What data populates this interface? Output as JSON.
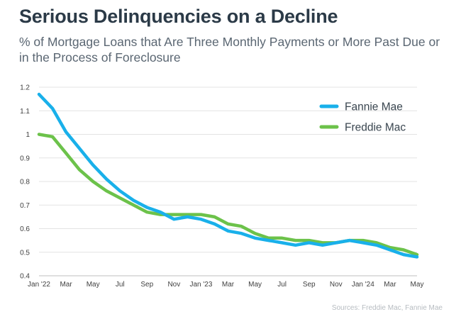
{
  "header": {
    "title": "Serious Delinquencies on a Decline",
    "subtitle": "% of Mortgage Loans that Are Three Monthly Payments or More Past Due or in the Process of Foreclosure"
  },
  "footer": {
    "source": "Sources: Freddie Mac, Fannie Mae"
  },
  "colors": {
    "fannie": "#19b0ea",
    "freddie": "#6cc24a",
    "grid": "#e3e3e3"
  },
  "chart_data": {
    "type": "line",
    "title": "Serious Delinquencies on a Decline",
    "subtitle": "% of Mortgage Loans that Are Three Monthly Payments or More Past Due or in the Process of Foreclosure",
    "xlabel": "",
    "ylabel": "",
    "ylim": [
      0.4,
      1.2
    ],
    "yticks": [
      0.4,
      0.5,
      0.6,
      0.7,
      0.8,
      0.9,
      1,
      1.1,
      1.2
    ],
    "ytick_labels": [
      "0.4",
      "0.5",
      "0.6",
      "0.7",
      "0.8",
      "0.9",
      "1",
      "1.1",
      "1.2"
    ],
    "grid": true,
    "legend_position": "top-right",
    "x": [
      "Jan '22",
      "Feb '22",
      "Mar '22",
      "Apr '22",
      "May '22",
      "Jun '22",
      "Jul '22",
      "Aug '22",
      "Sep '22",
      "Oct '22",
      "Nov '22",
      "Dec '22",
      "Jan '23",
      "Feb '23",
      "Mar '23",
      "Apr '23",
      "May '23",
      "Jun '23",
      "Jul '23",
      "Aug '23",
      "Sep '23",
      "Oct '23",
      "Nov '23",
      "Dec '23",
      "Jan '24",
      "Feb '24",
      "Mar '24",
      "Apr '24",
      "May '24"
    ],
    "x_tick_labels": [
      {
        "index": 0,
        "label": "Jan '22"
      },
      {
        "index": 2,
        "label": "Mar"
      },
      {
        "index": 4,
        "label": "May"
      },
      {
        "index": 6,
        "label": "Jul"
      },
      {
        "index": 8,
        "label": "Sep"
      },
      {
        "index": 10,
        "label": "Nov"
      },
      {
        "index": 12,
        "label": "Jan '23"
      },
      {
        "index": 14,
        "label": "Mar"
      },
      {
        "index": 16,
        "label": "May"
      },
      {
        "index": 18,
        "label": "Jul"
      },
      {
        "index": 20,
        "label": "Sep"
      },
      {
        "index": 22,
        "label": "Nov"
      },
      {
        "index": 24,
        "label": "Jan '24"
      },
      {
        "index": 26,
        "label": "Mar"
      },
      {
        "index": 28,
        "label": "May"
      }
    ],
    "series": [
      {
        "name": "Fannie Mae",
        "color": "#19b0ea",
        "values": [
          1.17,
          1.11,
          1.01,
          0.94,
          0.87,
          0.81,
          0.76,
          0.72,
          0.69,
          0.67,
          0.64,
          0.65,
          0.64,
          0.62,
          0.59,
          0.58,
          0.56,
          0.55,
          0.54,
          0.53,
          0.54,
          0.53,
          0.54,
          0.55,
          0.54,
          0.53,
          0.51,
          0.49,
          0.48
        ]
      },
      {
        "name": "Freddie Mac",
        "color": "#6cc24a",
        "values": [
          1.0,
          0.99,
          0.92,
          0.85,
          0.8,
          0.76,
          0.73,
          0.7,
          0.67,
          0.66,
          0.66,
          0.66,
          0.66,
          0.65,
          0.62,
          0.61,
          0.58,
          0.56,
          0.56,
          0.55,
          0.55,
          0.54,
          0.54,
          0.55,
          0.55,
          0.54,
          0.52,
          0.51,
          0.49
        ]
      }
    ]
  }
}
